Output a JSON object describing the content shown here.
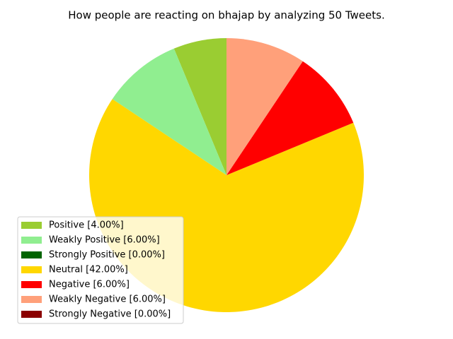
{
  "chart_data": {
    "type": "pie",
    "title": "How people are reacting on bhajap by analyzing 50 Tweets.",
    "categories": [
      "Positive [4.00%]",
      "Weakly Positive [6.00%]",
      "Strongly Positive [0.00%]",
      "Neutral [42.00%]",
      "Negative [6.00%]",
      "Weakly Negative [6.00%]",
      "Strongly Negative [0.00%]"
    ],
    "values": [
      4,
      6,
      0,
      42,
      6,
      6,
      0
    ],
    "colors": [
      "#9acd32",
      "#90ee90",
      "#006400",
      "#ffd700",
      "#ff0000",
      "#ffa07a",
      "#8b0000"
    ],
    "start_angle": 90,
    "legend": "lower left"
  }
}
